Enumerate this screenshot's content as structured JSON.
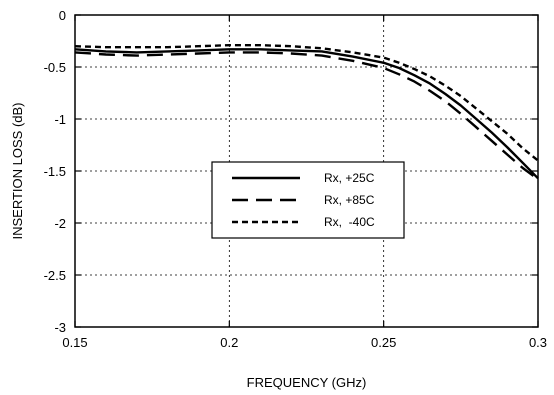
{
  "chart_data": {
    "type": "line",
    "title": "",
    "xlabel": "FREQUENCY (GHz)",
    "ylabel": "INSERTION LOSS (dB)",
    "xlim": [
      0.15,
      0.3
    ],
    "ylim": [
      -3,
      0
    ],
    "x_ticks": [
      0.15,
      0.2,
      0.25,
      0.3
    ],
    "x_tick_labels": [
      "0.15",
      "0.2",
      "0.25",
      "0.3"
    ],
    "y_ticks": [
      0,
      -0.5,
      -1,
      -1.5,
      -2,
      -2.5,
      -3
    ],
    "y_tick_labels": [
      "0",
      "-0.5",
      "-1",
      "-1.5",
      "-2",
      "-2.5",
      "-3"
    ],
    "grid": true,
    "legend_position": "center",
    "series": [
      {
        "name": "Rx, +25C",
        "style": "solid",
        "color": "#000000",
        "x": [
          0.15,
          0.16,
          0.17,
          0.18,
          0.19,
          0.2,
          0.21,
          0.22,
          0.23,
          0.24,
          0.25,
          0.255,
          0.26,
          0.265,
          0.27,
          0.275,
          0.28,
          0.285,
          0.29,
          0.295,
          0.3
        ],
        "y": [
          -0.33,
          -0.35,
          -0.36,
          -0.35,
          -0.34,
          -0.33,
          -0.33,
          -0.34,
          -0.35,
          -0.4,
          -0.46,
          -0.51,
          -0.58,
          -0.66,
          -0.76,
          -0.87,
          -1.0,
          -1.13,
          -1.27,
          -1.42,
          -1.57
        ]
      },
      {
        "name": "Rx, +85C",
        "style": "long-dash",
        "color": "#000000",
        "x": [
          0.15,
          0.16,
          0.17,
          0.18,
          0.19,
          0.2,
          0.21,
          0.22,
          0.23,
          0.24,
          0.25,
          0.255,
          0.26,
          0.265,
          0.27,
          0.275,
          0.28,
          0.285,
          0.29,
          0.295,
          0.3
        ],
        "y": [
          -0.36,
          -0.38,
          -0.39,
          -0.38,
          -0.37,
          -0.36,
          -0.36,
          -0.37,
          -0.39,
          -0.44,
          -0.51,
          -0.57,
          -0.64,
          -0.73,
          -0.83,
          -0.95,
          -1.08,
          -1.21,
          -1.34,
          -1.47,
          -1.58
        ]
      },
      {
        "name": "Rx,  -40C",
        "style": "short-dash",
        "color": "#000000",
        "x": [
          0.15,
          0.16,
          0.17,
          0.18,
          0.19,
          0.2,
          0.21,
          0.22,
          0.23,
          0.24,
          0.25,
          0.255,
          0.26,
          0.265,
          0.27,
          0.275,
          0.28,
          0.285,
          0.29,
          0.295,
          0.3
        ],
        "y": [
          -0.3,
          -0.31,
          -0.31,
          -0.31,
          -0.3,
          -0.29,
          -0.29,
          -0.3,
          -0.32,
          -0.36,
          -0.41,
          -0.46,
          -0.52,
          -0.59,
          -0.68,
          -0.78,
          -0.9,
          -1.02,
          -1.14,
          -1.28,
          -1.4
        ]
      }
    ]
  }
}
